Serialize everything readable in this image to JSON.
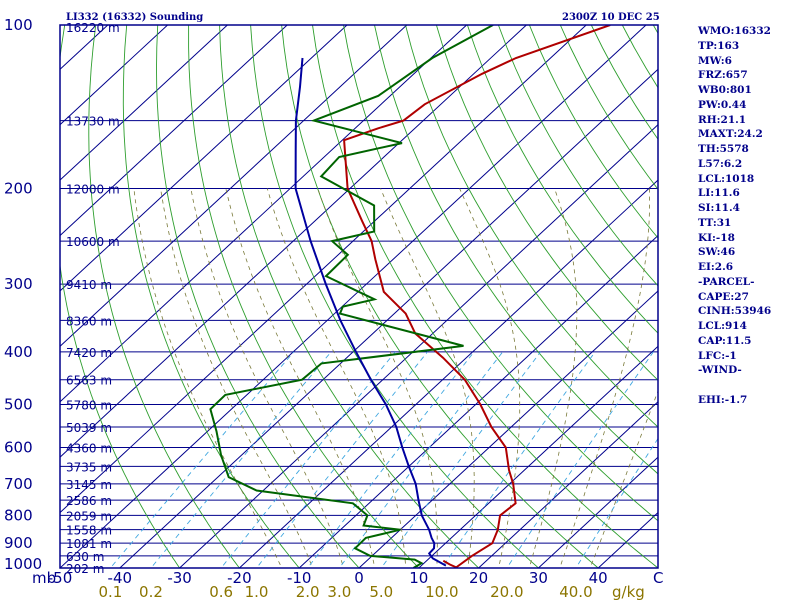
{
  "header": {
    "station": "LI332 (16332) Sounding",
    "time": "2300Z 10 DEC 25"
  },
  "indices": [
    "WMO:16332",
    "TP:163",
    "MW:6",
    "FRZ:657",
    "WB0:801",
    "PW:0.44",
    "RH:21.1",
    "MAXT:24.2",
    "TH:5578",
    "L57:6.2",
    "LCL:1018",
    "LI:11.6",
    "SI:11.4",
    "TT:31",
    "KI:-18",
    "SW:46",
    "EI:2.6",
    "-PARCEL-",
    "CAPE:27",
    "CINH:53946",
    "LCL:914",
    "CAP:11.5",
    "LFC:-1",
    "-WIND-",
    "",
    "EHI:-1.7"
  ],
  "chart_data": {
    "type": "line",
    "title": "LI332 (16332) Sounding",
    "subtitle": "2300Z 10 DEC 25",
    "xlabel": "C",
    "ylabel": "mb",
    "xlim": [
      -50,
      50
    ],
    "ylim": [
      1000,
      100
    ],
    "y_scale": "log",
    "skew_deg_per_decade": 98,
    "pressure_ticks": [
      100,
      200,
      300,
      400,
      500,
      600,
      700,
      800,
      900,
      1000
    ],
    "temperature_ticks": [
      -50,
      -40,
      -30,
      -20,
      -10,
      0,
      10,
      20,
      30,
      40
    ],
    "mixing_ratio_ticks": [
      "0.1",
      "0.2",
      "0.6",
      "1.0",
      "2.0",
      "3.0",
      "5.0",
      "10.0",
      "20.0",
      "40.0"
    ],
    "mixing_ratio_unit": "g/kg",
    "height_labels": [
      {
        "p": 1000,
        "label": "202 m"
      },
      {
        "p": 950,
        "label": "630 m"
      },
      {
        "p": 900,
        "label": "1081 m"
      },
      {
        "p": 850,
        "label": "1558 m"
      },
      {
        "p": 800,
        "label": "2059 m"
      },
      {
        "p": 750,
        "label": "2586 m"
      },
      {
        "p": 700,
        "label": "3145 m"
      },
      {
        "p": 650,
        "label": "3735 m"
      },
      {
        "p": 600,
        "label": "4360 m"
      },
      {
        "p": 550,
        "label": "5039 m"
      },
      {
        "p": 500,
        "label": "5780 m"
      },
      {
        "p": 450,
        "label": "6563 m"
      },
      {
        "p": 400,
        "label": "7420 m"
      },
      {
        "p": 350,
        "label": "8360 m"
      },
      {
        "p": 300,
        "label": "9410 m"
      },
      {
        "p": 250,
        "label": "10600 m"
      },
      {
        "p": 200,
        "label": "12000 m"
      },
      {
        "p": 150,
        "label": "13730 m"
      },
      {
        "p": 100,
        "label": "16220 m"
      }
    ],
    "series": [
      {
        "color": "#b00000",
        "points": [
          {
            "p": 1000,
            "t": 16.1
          },
          {
            "p": 950,
            "t": 16.7
          },
          {
            "p": 900,
            "t": 17.8
          },
          {
            "p": 850,
            "t": 16.3
          },
          {
            "p": 800,
            "t": 14.1
          },
          {
            "p": 760,
            "t": 14.5
          },
          {
            "p": 700,
            "t": 10.6
          },
          {
            "p": 660,
            "t": 7.4
          },
          {
            "p": 600,
            "t": 2.8
          },
          {
            "p": 550,
            "t": -3.3
          },
          {
            "p": 500,
            "t": -9.2
          },
          {
            "p": 450,
            "t": -16.3
          },
          {
            "p": 410,
            "t": -23.9
          },
          {
            "p": 370,
            "t": -32.9
          },
          {
            "p": 340,
            "t": -38.1
          },
          {
            "p": 310,
            "t": -45.7
          },
          {
            "p": 270,
            "t": -53.0
          },
          {
            "p": 250,
            "t": -56.9
          },
          {
            "p": 230,
            "t": -62.0
          },
          {
            "p": 200,
            "t": -70.4
          },
          {
            "p": 163,
            "t": -79.7
          },
          {
            "p": 155,
            "t": -76.2
          },
          {
            "p": 150,
            "t": -73.3
          },
          {
            "p": 140,
            "t": -72.7
          },
          {
            "p": 123,
            "t": -68.6
          },
          {
            "p": 115,
            "t": -65.8
          },
          {
            "p": 100,
            "t": -56.0
          }
        ]
      },
      {
        "color": "#006400",
        "points": [
          {
            "p": 1000,
            "t": 9.1
          },
          {
            "p": 980,
            "t": 9.6
          },
          {
            "p": 965,
            "t": 7.8
          },
          {
            "p": 950,
            "t": -0.3
          },
          {
            "p": 920,
            "t": -4.2
          },
          {
            "p": 880,
            "t": -4.3
          },
          {
            "p": 850,
            "t": 0.0
          },
          {
            "p": 835,
            "t": -6.9
          },
          {
            "p": 800,
            "t": -8.1
          },
          {
            "p": 760,
            "t": -12.7
          },
          {
            "p": 720,
            "t": -31.1
          },
          {
            "p": 680,
            "t": -38.2
          },
          {
            "p": 620,
            "t": -43.4
          },
          {
            "p": 560,
            "t": -48.5
          },
          {
            "p": 510,
            "t": -53.5
          },
          {
            "p": 480,
            "t": -53.6
          },
          {
            "p": 450,
            "t": -43.5
          },
          {
            "p": 420,
            "t": -43.2
          },
          {
            "p": 390,
            "t": -22.6
          },
          {
            "p": 340,
            "t": -49.1
          },
          {
            "p": 330,
            "t": -49.9
          },
          {
            "p": 320,
            "t": -45.9
          },
          {
            "p": 290,
            "t": -58.2
          },
          {
            "p": 265,
            "t": -58.4
          },
          {
            "p": 250,
            "t": -63.5
          },
          {
            "p": 240,
            "t": -58.2
          },
          {
            "p": 215,
            "t": -62.9
          },
          {
            "p": 190,
            "t": -77.0
          },
          {
            "p": 175,
            "t": -77.5
          },
          {
            "p": 165,
            "t": -69.5
          },
          {
            "p": 150,
            "t": -88.3
          },
          {
            "p": 135,
            "t": -82.0
          },
          {
            "p": 115,
            "t": -79.8
          },
          {
            "p": 100,
            "t": -75.6
          }
        ]
      },
      {
        "color": "#0000a0",
        "points": [
          {
            "p": 990,
            "t": 14.1
          },
          {
            "p": 960,
            "t": 10.6
          },
          {
            "p": 940,
            "t": 9.1
          },
          {
            "p": 920,
            "t": 9.0
          },
          {
            "p": 900,
            "t": 8.1
          },
          {
            "p": 880,
            "t": 6.7
          },
          {
            "p": 850,
            "t": 4.8
          },
          {
            "p": 800,
            "t": 1.0
          },
          {
            "p": 750,
            "t": -2.3
          },
          {
            "p": 700,
            "t": -5.7
          },
          {
            "p": 650,
            "t": -10.0
          },
          {
            "p": 600,
            "t": -14.5
          },
          {
            "p": 550,
            "t": -19.2
          },
          {
            "p": 500,
            "t": -25.0
          },
          {
            "p": 450,
            "t": -32.0
          },
          {
            "p": 400,
            "t": -39.5
          },
          {
            "p": 350,
            "t": -47.8
          },
          {
            "p": 300,
            "t": -56.8
          },
          {
            "p": 250,
            "t": -67.1
          },
          {
            "p": 200,
            "t": -79.1
          },
          {
            "p": 170,
            "t": -86.0
          },
          {
            "p": 150,
            "t": -91.3
          },
          {
            "p": 130,
            "t": -96.7
          },
          {
            "p": 115,
            "t": -101.5
          }
        ]
      },
      {
        "color": "#b00000",
        "points": [
          {
            "p": 1000,
            "t": 16.5
          },
          {
            "p": 985,
            "t": 14.5
          },
          {
            "p": 970,
            "t": 12.8
          }
        ]
      }
    ]
  }
}
